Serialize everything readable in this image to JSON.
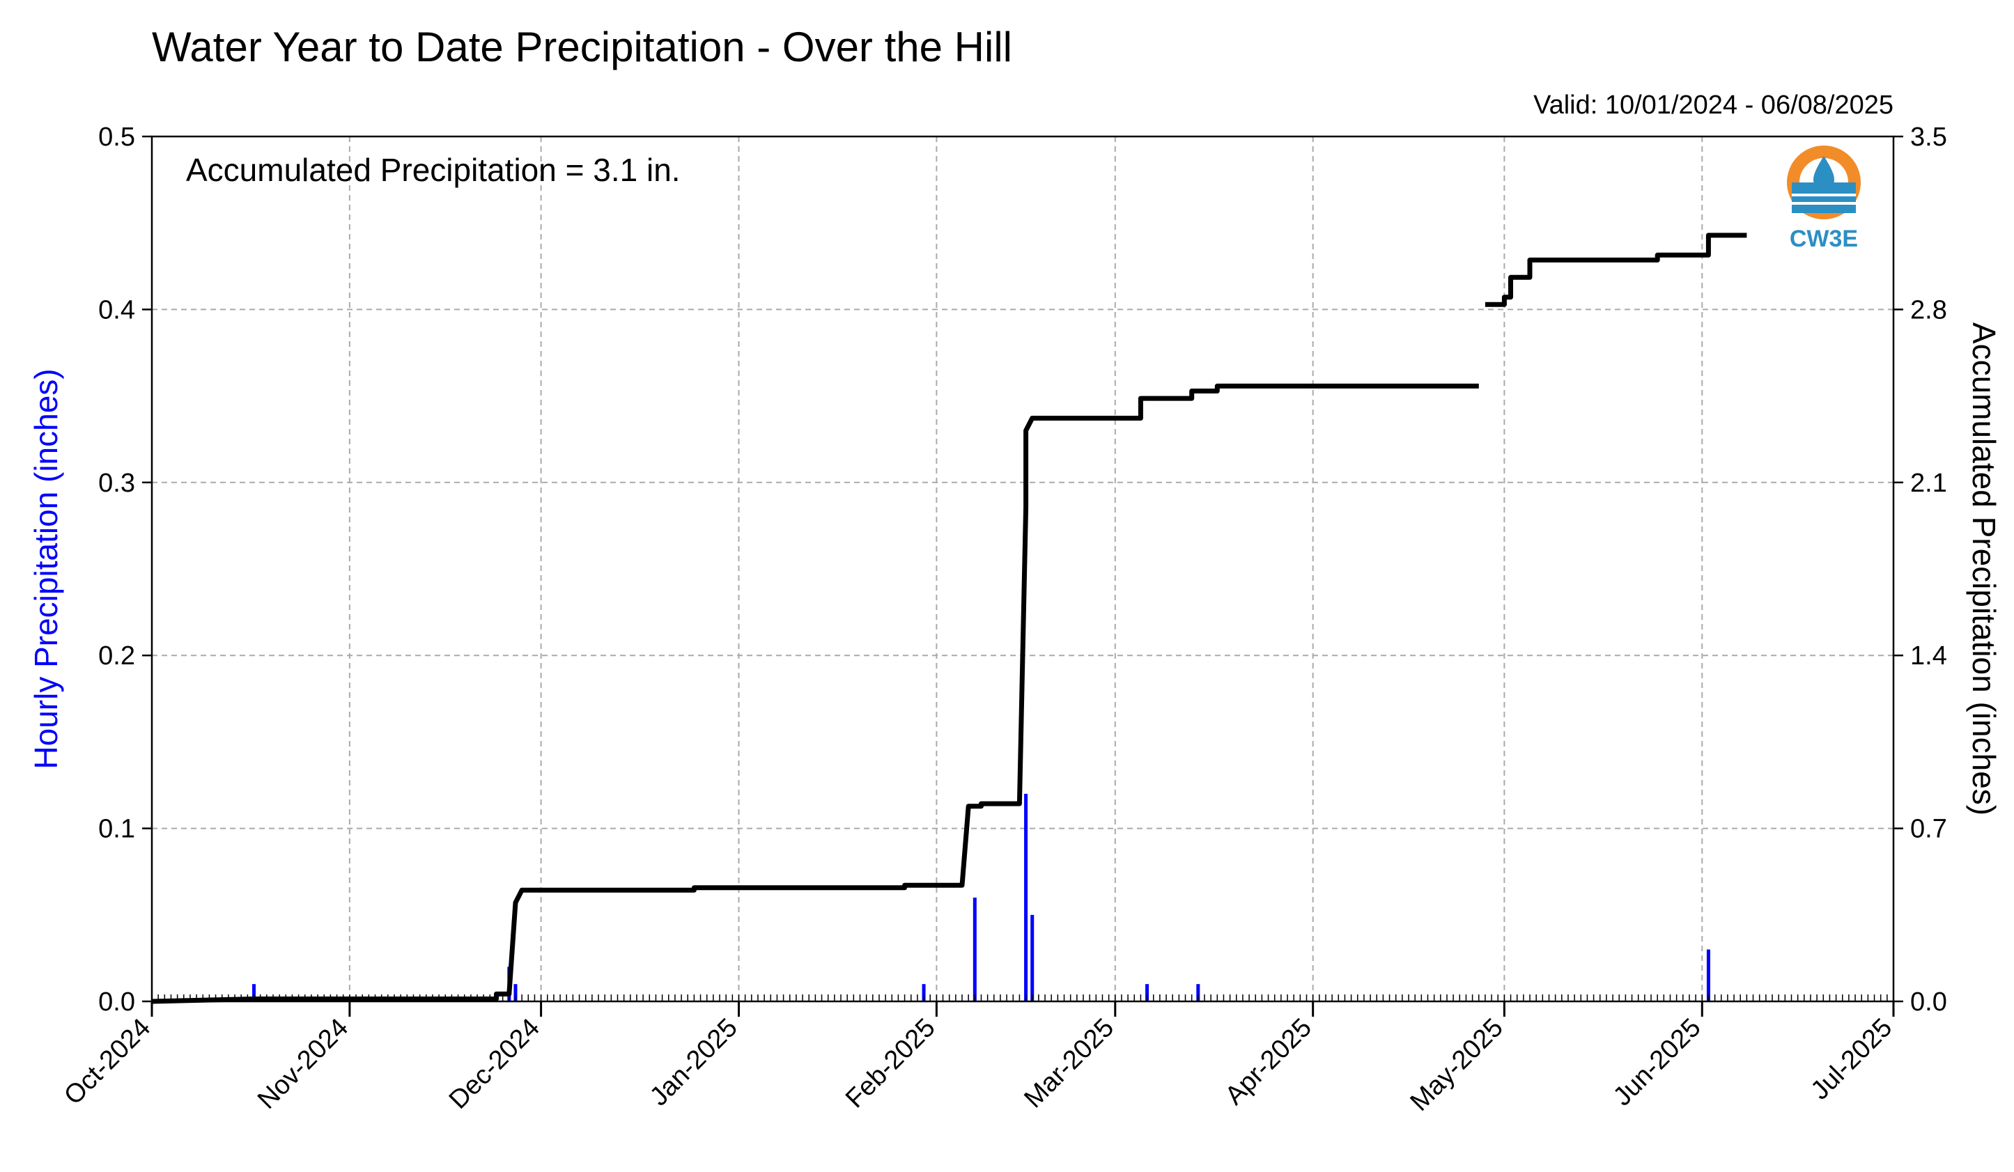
{
  "chart_data": {
    "type": "bar+line",
    "title": "Water Year to Date Precipitation - Over the Hill",
    "valid_label": "Valid: 10/01/2024 - 06/08/2025",
    "annotation": "Accumulated Precipitation = 3.1 in.",
    "ylabel_left": "Hourly Precipitation (inches)",
    "ylabel_right": "Accumulated Precipitation (inches)",
    "xlim": [
      "2024-10-01",
      "2025-07-01"
    ],
    "ylim_left": [
      0,
      0.5
    ],
    "ylim_right": [
      0,
      3.5
    ],
    "x_ticks": [
      {
        "date": "2024-10-01",
        "label": "Oct-2024"
      },
      {
        "date": "2024-11-01",
        "label": "Nov-2024"
      },
      {
        "date": "2024-12-01",
        "label": "Dec-2024"
      },
      {
        "date": "2025-01-01",
        "label": "Jan-2025"
      },
      {
        "date": "2025-02-01",
        "label": "Feb-2025"
      },
      {
        "date": "2025-03-01",
        "label": "Mar-2025"
      },
      {
        "date": "2025-04-01",
        "label": "Apr-2025"
      },
      {
        "date": "2025-05-01",
        "label": "May-2025"
      },
      {
        "date": "2025-06-01",
        "label": "Jun-2025"
      },
      {
        "date": "2025-07-01",
        "label": "Jul-2025"
      }
    ],
    "y_ticks_left": [
      "0.0",
      "0.1",
      "0.2",
      "0.3",
      "0.4",
      "0.5"
    ],
    "y_ticks_right": [
      "0.0",
      "0.7",
      "1.4",
      "2.1",
      "2.8",
      "3.5"
    ],
    "grid": true,
    "series": [
      {
        "name": "Hourly Precipitation",
        "axis": "left",
        "style": "bar",
        "color": "#0000ff",
        "points": [
          {
            "x": "2024-10-17",
            "y": 0.01
          },
          {
            "x": "2024-11-26",
            "y": 0.02
          },
          {
            "x": "2024-11-27",
            "y": 0.01
          },
          {
            "x": "2025-01-30",
            "y": 0.01
          },
          {
            "x": "2025-02-07",
            "y": 0.06
          },
          {
            "x": "2025-02-15",
            "y": 0.12
          },
          {
            "x": "2025-02-16",
            "y": 0.05
          },
          {
            "x": "2025-03-06",
            "y": 0.01
          },
          {
            "x": "2025-03-14",
            "y": 0.01
          },
          {
            "x": "2025-06-02",
            "y": 0.03
          }
        ]
      },
      {
        "name": "Accumulated Precipitation",
        "axis": "right",
        "style": "step",
        "color": "#000000",
        "segments": [
          [
            {
              "x": "2024-10-01",
              "y": 0.0
            },
            {
              "x": "2024-10-17",
              "y": 0.01
            },
            {
              "x": "2024-11-24",
              "y": 0.01
            },
            {
              "x": "2024-11-24",
              "y": 0.03
            },
            {
              "x": "2024-11-26",
              "y": 0.03
            },
            {
              "x": "2024-11-27",
              "y": 0.4
            },
            {
              "x": "2024-11-28",
              "y": 0.45
            },
            {
              "x": "2024-12-25",
              "y": 0.45
            },
            {
              "x": "2024-12-25",
              "y": 0.46
            },
            {
              "x": "2025-01-27",
              "y": 0.46
            },
            {
              "x": "2025-01-27",
              "y": 0.47
            },
            {
              "x": "2025-02-05",
              "y": 0.47
            },
            {
              "x": "2025-02-06",
              "y": 0.79
            },
            {
              "x": "2025-02-08",
              "y": 0.79
            },
            {
              "x": "2025-02-08",
              "y": 0.8
            },
            {
              "x": "2025-02-14",
              "y": 0.8
            },
            {
              "x": "2025-02-15",
              "y": 2.0
            },
            {
              "x": "2025-02-15",
              "y": 2.31
            },
            {
              "x": "2025-02-16",
              "y": 2.36
            },
            {
              "x": "2025-03-05",
              "y": 2.36
            },
            {
              "x": "2025-03-05",
              "y": 2.44
            },
            {
              "x": "2025-03-13",
              "y": 2.44
            },
            {
              "x": "2025-03-13",
              "y": 2.47
            },
            {
              "x": "2025-03-17",
              "y": 2.47
            },
            {
              "x": "2025-03-17",
              "y": 2.49
            },
            {
              "x": "2025-04-27",
              "y": 2.49
            }
          ],
          [
            {
              "x": "2025-04-28",
              "y": 2.82
            },
            {
              "x": "2025-05-01",
              "y": 2.82
            },
            {
              "x": "2025-05-01",
              "y": 2.85
            },
            {
              "x": "2025-05-02",
              "y": 2.85
            },
            {
              "x": "2025-05-02",
              "y": 2.93
            },
            {
              "x": "2025-05-05",
              "y": 2.93
            },
            {
              "x": "2025-05-05",
              "y": 3.0
            },
            {
              "x": "2025-05-25",
              "y": 3.0
            },
            {
              "x": "2025-05-25",
              "y": 3.02
            },
            {
              "x": "2025-06-02",
              "y": 3.02
            },
            {
              "x": "2025-06-02",
              "y": 3.1
            },
            {
              "x": "2025-06-08",
              "y": 3.1
            }
          ]
        ]
      }
    ],
    "logo": {
      "text": "CW3E",
      "orange": "#f28c28",
      "blue": "#2b8fc4"
    }
  }
}
